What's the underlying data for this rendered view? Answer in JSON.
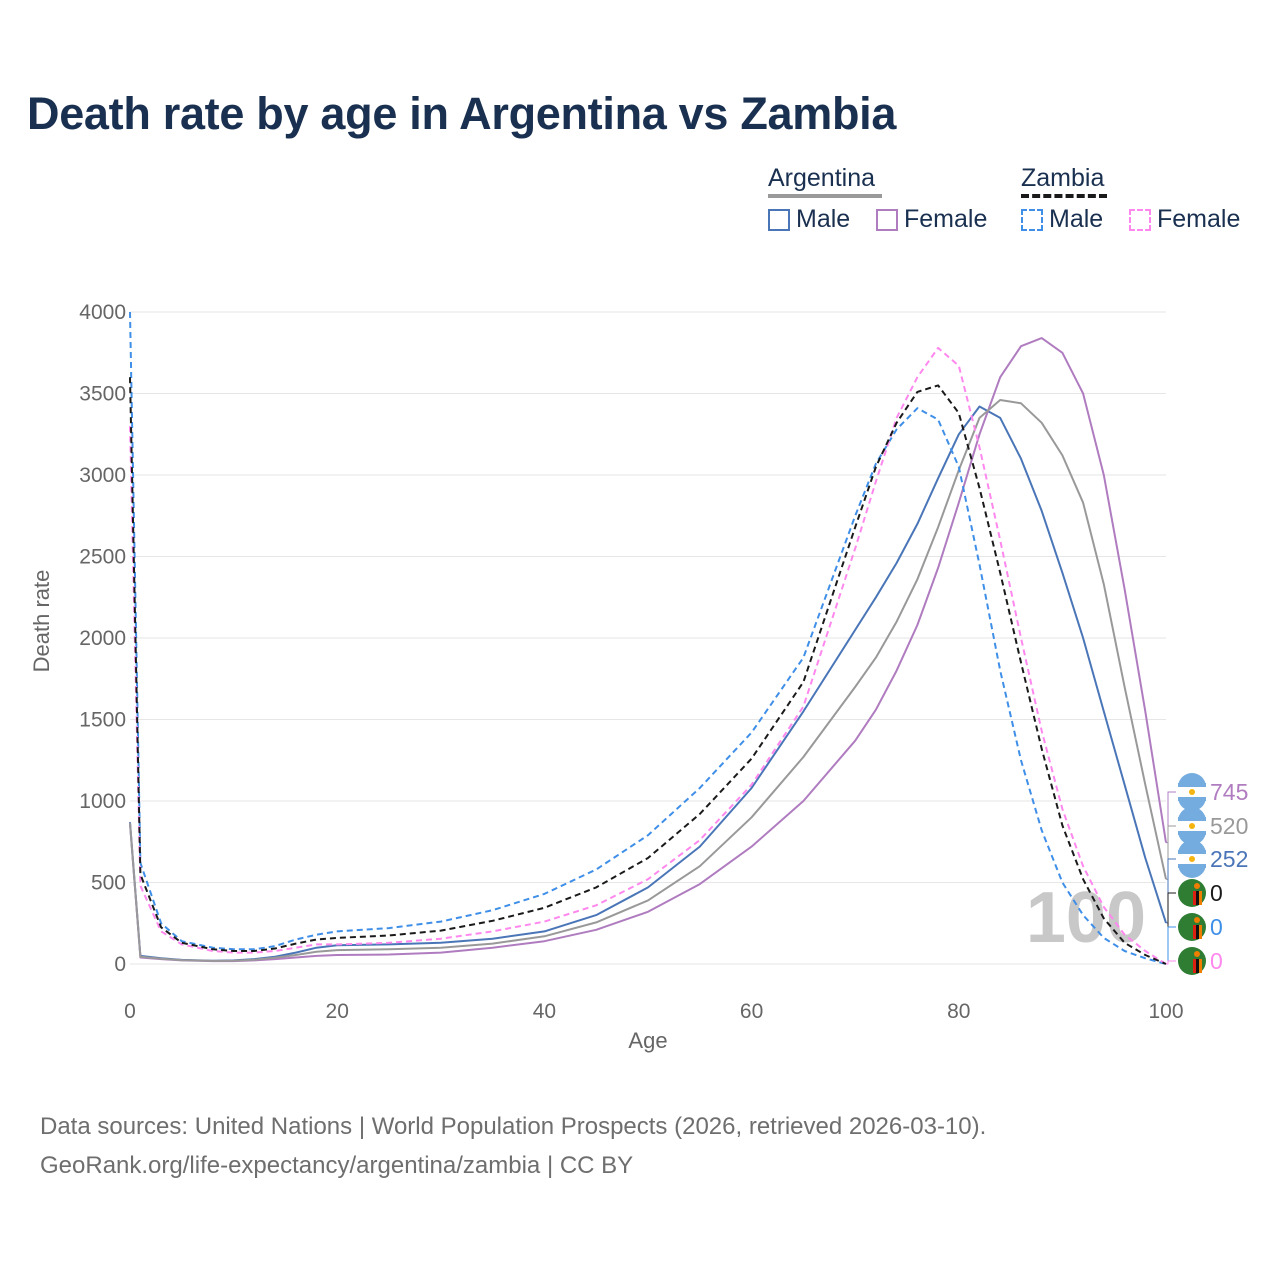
{
  "title": "Death rate by age in Argentina vs Zambia",
  "legend": {
    "groups": [
      {
        "country": "Argentina",
        "line_style": "solid",
        "items": [
          {
            "label": "Male",
            "color": "#4a76b8"
          },
          {
            "label": "Female",
            "color": "#b07cc0"
          }
        ]
      },
      {
        "country": "Zambia",
        "line_style": "dashed",
        "items": [
          {
            "label": "Male",
            "color": "#3f8fe8"
          },
          {
            "label": "Female",
            "color": "#ff88ee"
          }
        ]
      }
    ]
  },
  "source": {
    "line1": "Data sources: United Nations | World Population Prospects (2026, retrieved 2026-03-10).",
    "line2": "GeoRank.org/life-expectancy/argentina/zambia | CC BY"
  },
  "chart_data": {
    "type": "line",
    "title": "Death rate by age in Argentina vs Zambia",
    "xlabel": "Age",
    "ylabel": "Death rate",
    "xlim": [
      0,
      100
    ],
    "ylim": [
      0,
      4000
    ],
    "xticks": [
      0,
      20,
      40,
      60,
      80,
      100
    ],
    "yticks": [
      0,
      500,
      1000,
      1500,
      2000,
      2500,
      3000,
      3500,
      4000
    ],
    "watermark": "100",
    "x": [
      0,
      1,
      3,
      5,
      8,
      10,
      12,
      14,
      16,
      18,
      20,
      25,
      30,
      35,
      40,
      45,
      50,
      55,
      60,
      65,
      70,
      72,
      74,
      76,
      78,
      80,
      82,
      84,
      86,
      88,
      90,
      92,
      94,
      96,
      98,
      100
    ],
    "series": [
      {
        "name": "Argentina Male",
        "country": "Argentina",
        "sex": "Male",
        "color": "#4a76b8",
        "dash": "solid",
        "end_value": "252",
        "values": [
          870,
          50,
          35,
          25,
          20,
          22,
          30,
          45,
          70,
          100,
          115,
          120,
          130,
          155,
          200,
          300,
          470,
          720,
          1080,
          1550,
          2050,
          2250,
          2460,
          2700,
          2980,
          3250,
          3420,
          3350,
          3100,
          2780,
          2400,
          2000,
          1550,
          1100,
          650,
          252
        ]
      },
      {
        "name": "Argentina Female",
        "country": "Argentina",
        "sex": "Female",
        "color": "#b07cc0",
        "dash": "solid",
        "end_value": "745",
        "values": [
          860,
          40,
          30,
          22,
          18,
          18,
          22,
          30,
          40,
          50,
          55,
          58,
          70,
          100,
          140,
          210,
          320,
          490,
          720,
          1000,
          1370,
          1560,
          1800,
          2080,
          2430,
          2830,
          3250,
          3600,
          3790,
          3840,
          3750,
          3500,
          3000,
          2300,
          1550,
          745
        ]
      },
      {
        "name": "Argentina",
        "country": "Argentina",
        "sex": "Total",
        "color": "#999999",
        "dash": "solid",
        "end_value": "520",
        "values": [
          865,
          45,
          32,
          24,
          19,
          20,
          26,
          38,
          55,
          75,
          85,
          90,
          100,
          125,
          170,
          255,
          390,
          600,
          900,
          1270,
          1700,
          1880,
          2100,
          2360,
          2680,
          3030,
          3350,
          3460,
          3440,
          3320,
          3120,
          2830,
          2330,
          1700,
          1100,
          520
        ]
      },
      {
        "name": "Zambia Male",
        "country": "Zambia",
        "sex": "Male",
        "color": "#3f8fe8",
        "dash": "dashed",
        "end_value": "0",
        "values": [
          4000,
          620,
          250,
          140,
          100,
          90,
          90,
          110,
          150,
          180,
          200,
          220,
          260,
          330,
          430,
          580,
          790,
          1080,
          1420,
          1880,
          2750,
          3070,
          3280,
          3410,
          3340,
          3050,
          2450,
          1800,
          1250,
          820,
          500,
          300,
          160,
          80,
          35,
          0
        ]
      },
      {
        "name": "Zambia Female",
        "country": "Zambia",
        "sex": "Female",
        "color": "#ff88ee",
        "dash": "dashed",
        "end_value": "0",
        "values": [
          3300,
          480,
          200,
          120,
          80,
          70,
          70,
          80,
          100,
          120,
          120,
          130,
          155,
          200,
          260,
          360,
          520,
          760,
          1100,
          1580,
          2550,
          2960,
          3350,
          3600,
          3780,
          3670,
          3170,
          2600,
          2000,
          1430,
          950,
          600,
          350,
          180,
          80,
          0
        ]
      },
      {
        "name": "Zambia",
        "country": "Zambia",
        "sex": "Total",
        "color": "#1a1a1a",
        "dash": "dashed",
        "end_value": "0",
        "values": [
          3600,
          550,
          225,
          130,
          90,
          80,
          80,
          95,
          125,
          150,
          160,
          175,
          205,
          265,
          345,
          470,
          650,
          920,
          1260,
          1730,
          2680,
          3050,
          3320,
          3510,
          3550,
          3380,
          2920,
          2400,
          1850,
          1320,
          850,
          520,
          280,
          130,
          55,
          0
        ]
      }
    ]
  }
}
